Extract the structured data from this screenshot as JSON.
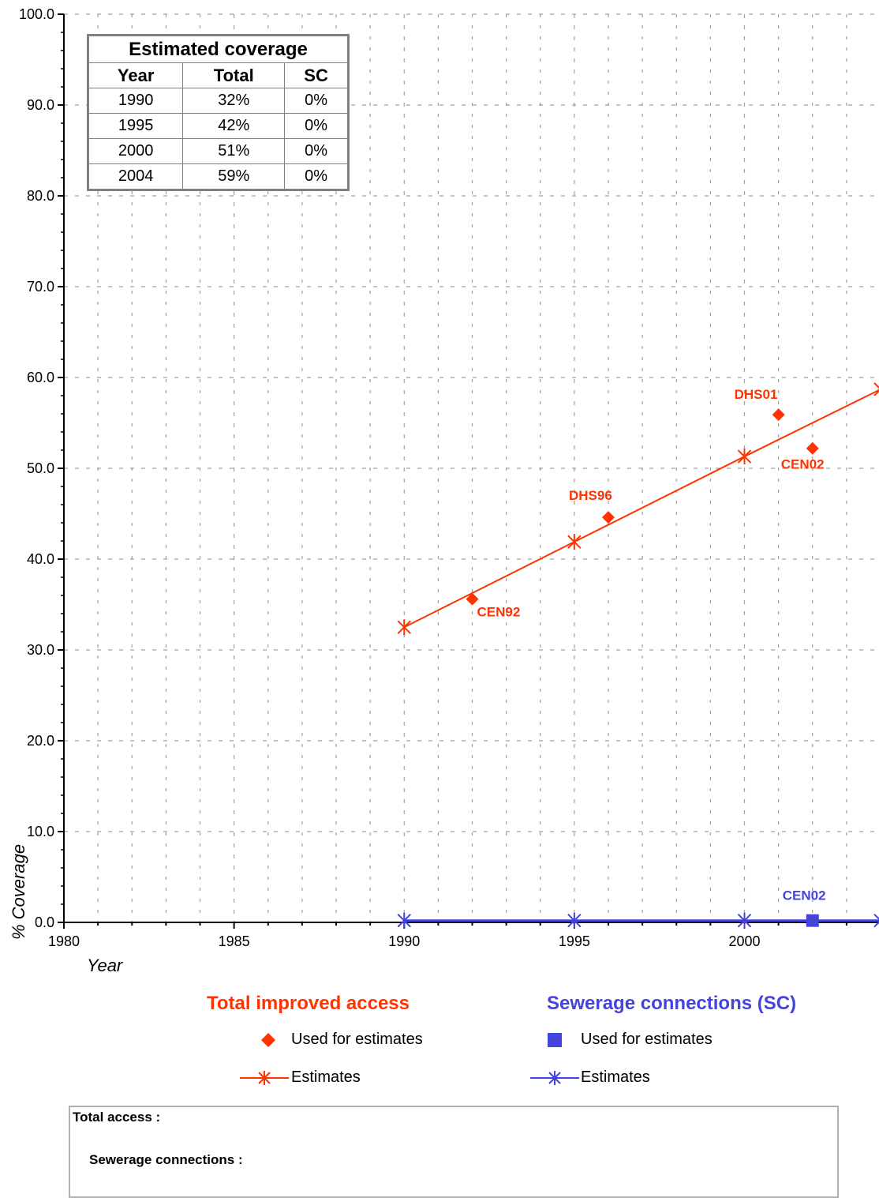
{
  "colors": {
    "total": "#ff3300",
    "sewerage": "#4444dd",
    "grid": "#a0a0a0",
    "table_border": "#808080"
  },
  "coverage_table": {
    "title": "Estimated coverage",
    "headers": [
      "Year",
      "Total",
      "SC"
    ],
    "rows": [
      [
        "1990",
        "32%",
        "0%"
      ],
      [
        "1995",
        "42%",
        "0%"
      ],
      [
        "2000",
        "51%",
        "0%"
      ],
      [
        "2004",
        "59%",
        "0%"
      ]
    ]
  },
  "legend": {
    "total": {
      "title": "Total improved access",
      "used_label": "Used for estimates",
      "estimates_label": "Estimates"
    },
    "sewerage": {
      "title": "Sewerage connections (SC)",
      "used_label": "Used for estimates",
      "estimates_label": "Estimates"
    }
  },
  "notes": {
    "total_label": "Total access :",
    "sewerage_label": "Sewerage connections :"
  },
  "chart_data": {
    "type": "line",
    "xlabel": "Year",
    "ylabel": "% Coverage",
    "xlim": [
      1980,
      2004
    ],
    "ylim": [
      0,
      100
    ],
    "x_ticks": [
      1980,
      1985,
      1990,
      1995,
      2000
    ],
    "y_ticks": [
      "0.0",
      "10.0",
      "20.0",
      "30.0",
      "40.0",
      "50.0",
      "60.0",
      "70.0",
      "80.0",
      "90.0",
      "100.0"
    ],
    "grid": true,
    "series": [
      {
        "name": "Total improved access",
        "kind": "survey-points",
        "points": [
          {
            "x": 1992,
            "y": 35.6,
            "label": "CEN92"
          },
          {
            "x": 1996,
            "y": 44.6,
            "label": "DHS96"
          },
          {
            "x": 2001,
            "y": 55.9,
            "label": "DHS01"
          },
          {
            "x": 2002,
            "y": 52.2,
            "label": "CEN02"
          }
        ]
      },
      {
        "name": "Total improved access",
        "kind": "estimates",
        "points": [
          {
            "x": 1990,
            "y": 32.5
          },
          {
            "x": 1995,
            "y": 41.9
          },
          {
            "x": 2000,
            "y": 51.3
          },
          {
            "x": 2004,
            "y": 58.7
          }
        ]
      },
      {
        "name": "Sewerage connections (SC)",
        "kind": "survey-points",
        "points": [
          {
            "x": 2002,
            "y": 0.2,
            "label": "CEN02"
          }
        ]
      },
      {
        "name": "Sewerage connections (SC)",
        "kind": "estimates",
        "points": [
          {
            "x": 1990,
            "y": 0.2
          },
          {
            "x": 1995,
            "y": 0.2
          },
          {
            "x": 2000,
            "y": 0.2
          },
          {
            "x": 2004,
            "y": 0.2
          }
        ]
      }
    ]
  }
}
